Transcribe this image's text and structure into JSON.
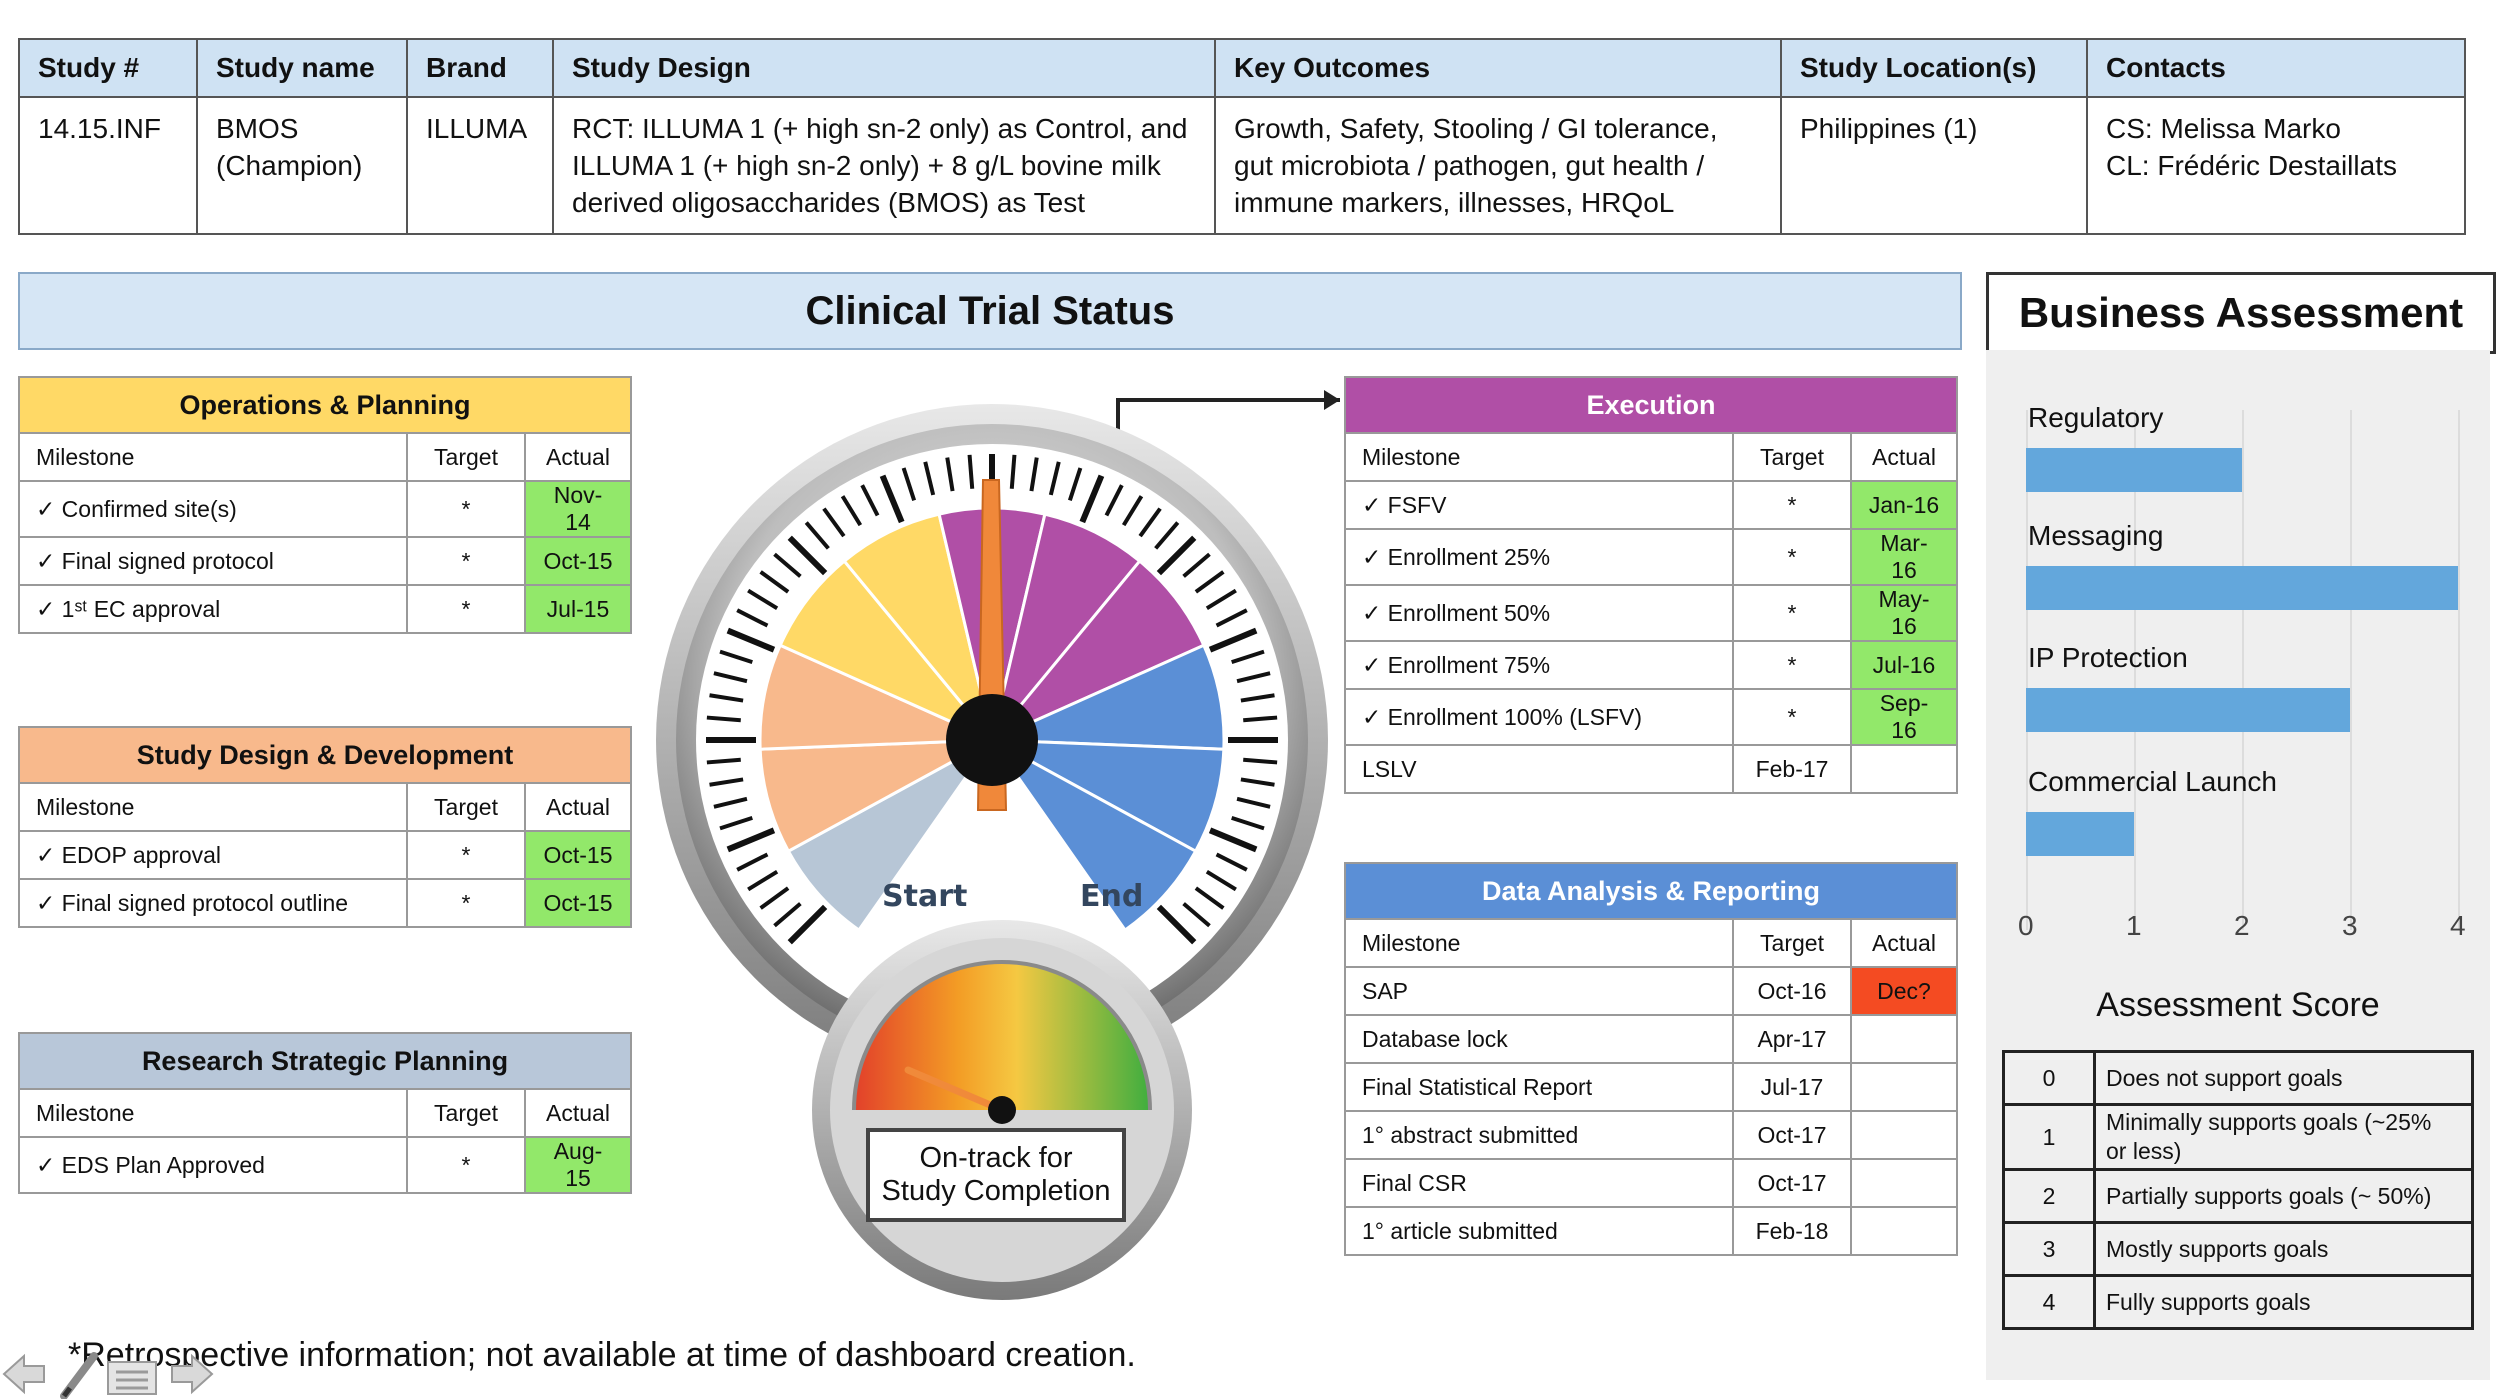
{
  "info_table": {
    "headers": [
      "Study #",
      "Study name",
      "Brand",
      "Study Design",
      "Key Outcomes",
      "Study Location(s)",
      "Contacts"
    ],
    "row": {
      "study_no": "14.15.INF",
      "study_name_1": "BMOS",
      "study_name_2": "(Champion)",
      "brand": "ILLUMA",
      "design_1": "RCT: ILLUMA 1 (+ high sn-2 only) as Control, and",
      "design_2": "ILLUMA 1 (+ high sn-2 only) + 8 g/L bovine milk",
      "design_3": "derived oligosaccharides (BMOS) as Test",
      "outcomes_1": "Growth, Safety, Stooling / GI tolerance,",
      "outcomes_2": "gut microbiota / pathogen, gut health /",
      "outcomes_3": "immune markers, illnesses, HRQoL",
      "location": "Philippines (1)",
      "contact_1": "CS: Melissa Marko",
      "contact_2": "CL: Frédéric Destaillats"
    }
  },
  "clinical_status_title": "Clinical Trial Status",
  "business_assessment_title": "Business Assessment",
  "columns": {
    "milestone": "Milestone",
    "target": "Target",
    "actual": "Actual"
  },
  "colors": {
    "ops": "#ffd966",
    "design": "#f8b98c",
    "research": "#b8c7d9",
    "execution": "#b04fa6",
    "data": "#5b8fd6",
    "green": "#92e86a",
    "red": "#f44b22",
    "bar": "#63a7dc"
  },
  "operations": {
    "title": "Operations & Planning",
    "rows": [
      {
        "milestone": "✓ Confirmed site(s)",
        "target": "*",
        "actual": "Nov-14"
      },
      {
        "milestone": "✓ Final signed protocol",
        "target": "*",
        "actual": "Oct-15"
      },
      {
        "milestone": "✓ 1ˢᵗ EC approval",
        "target": "*",
        "actual": "Jul-15"
      }
    ]
  },
  "design": {
    "title": "Study Design & Development",
    "rows": [
      {
        "milestone": "✓ EDOP approval",
        "target": "*",
        "actual": "Oct-15"
      },
      {
        "milestone": "✓ Final signed protocol outline",
        "target": "*",
        "actual": "Oct-15"
      }
    ]
  },
  "research": {
    "title": "Research Strategic Planning",
    "rows": [
      {
        "milestone": "✓ EDS Plan Approved",
        "target": "*",
        "actual": "Aug-15"
      }
    ]
  },
  "execution": {
    "title": "Execution",
    "rows": [
      {
        "milestone": "✓ FSFV",
        "target": "*",
        "actual": "Jan-16"
      },
      {
        "milestone": "✓ Enrollment 25%",
        "target": "*",
        "actual": "Mar-16"
      },
      {
        "milestone": "✓ Enrollment 50%",
        "target": "*",
        "actual": "May-16"
      },
      {
        "milestone": "✓ Enrollment 75%",
        "target": "*",
        "actual": "Jul-16"
      },
      {
        "milestone": "✓ Enrollment 100% (LSFV)",
        "target": "*",
        "actual": "Sep-16"
      },
      {
        "milestone": "LSLV",
        "target": "Feb-17",
        "actual": ""
      }
    ]
  },
  "data_analysis": {
    "title": "Data Analysis & Reporting",
    "rows": [
      {
        "milestone": "SAP",
        "target": "Oct-16",
        "actual": "Dec?"
      },
      {
        "milestone": "Database lock",
        "target": "Apr-17",
        "actual": ""
      },
      {
        "milestone": "Final Statistical Report",
        "target": "Jul-17",
        "actual": ""
      },
      {
        "milestone": "1° abstract submitted",
        "target": "Oct-17",
        "actual": ""
      },
      {
        "milestone": "Final CSR",
        "target": "Oct-17",
        "actual": ""
      },
      {
        "milestone": "1° article submitted",
        "target": "Feb-18",
        "actual": ""
      }
    ]
  },
  "gauge": {
    "start_label": "Start",
    "end_label": "End",
    "caption_1": "On-track for",
    "caption_2": "Study Completion"
  },
  "assessment": {
    "categories": [
      {
        "label": "Regulatory",
        "value": 2
      },
      {
        "label": "Messaging",
        "value": 4
      },
      {
        "label": "IP Protection",
        "value": 3
      },
      {
        "label": "Commercial Launch",
        "value": 1
      }
    ],
    "ticks": [
      "0",
      "1",
      "2",
      "3",
      "4"
    ],
    "score_title": "Assessment Score",
    "scores": [
      {
        "n": "0",
        "text": "Does not support goals"
      },
      {
        "n": "1",
        "text": "Minimally supports goals (~25%",
        "text2": "or less)"
      },
      {
        "n": "2",
        "text": "Partially supports goals (~ 50%)"
      },
      {
        "n": "3",
        "text": "Mostly supports goals"
      },
      {
        "n": "4",
        "text": "Fully supports goals"
      }
    ]
  },
  "footnote": "*Retrospective information; not available at time of dashboard creation."
}
